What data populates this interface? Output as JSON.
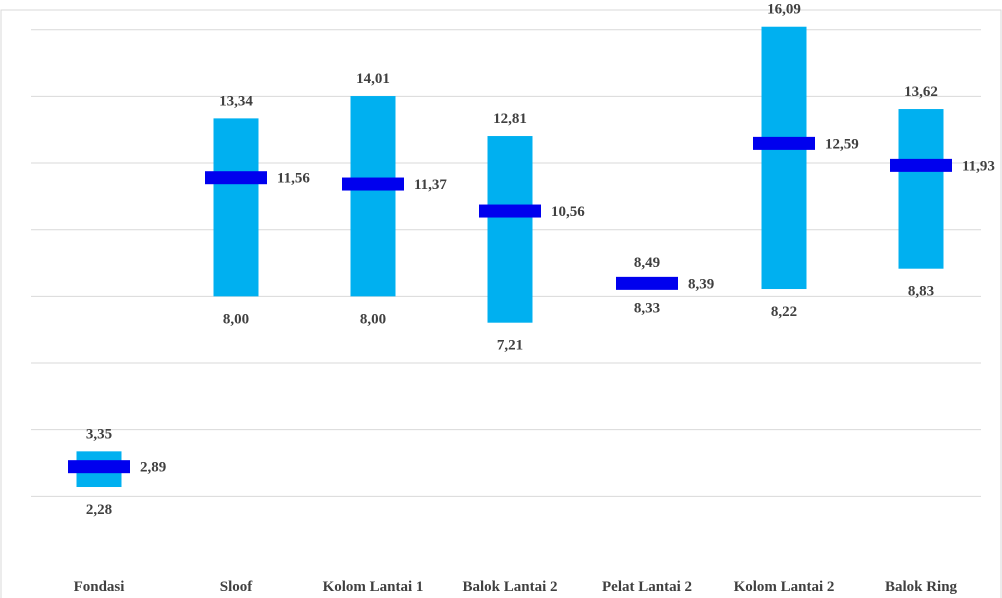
{
  "chart_data": {
    "type": "bar",
    "subtype": "range-bar-with-mean-marker",
    "title": "",
    "xlabel": "",
    "ylabel": "",
    "ylim": [
      0,
      18
    ],
    "grid": true,
    "legend": "none",
    "colors": {
      "range": "#00b0f0",
      "mean": "#0000ee",
      "text": "#404040",
      "grid": "#d9d9d9"
    },
    "categories": [
      "Fondasi",
      "Sloof",
      "Kolom Lantai 1",
      "Balok Lantai 2",
      "Pelat Lantai 2",
      "Kolom Lantai 2",
      "Balok Ring"
    ],
    "min": [
      2.28,
      8.0,
      8.0,
      7.21,
      8.33,
      8.22,
      8.83
    ],
    "max": [
      3.35,
      13.34,
      14.01,
      12.81,
      8.49,
      16.09,
      13.62
    ],
    "mean": [
      2.89,
      11.56,
      11.37,
      10.56,
      8.39,
      12.59,
      11.93
    ],
    "min_labels": [
      "2,28",
      "8,00",
      "8,00",
      "7,21",
      "8,33",
      "8,22",
      "8,83"
    ],
    "max_labels": [
      "3,35",
      "13,34",
      "14,01",
      "12,81",
      "8,49",
      "16,09",
      "13,62"
    ],
    "mean_labels": [
      "2,89",
      "11,56",
      "11,37",
      "10,56",
      "8,39",
      "12,59",
      "11,93"
    ]
  }
}
